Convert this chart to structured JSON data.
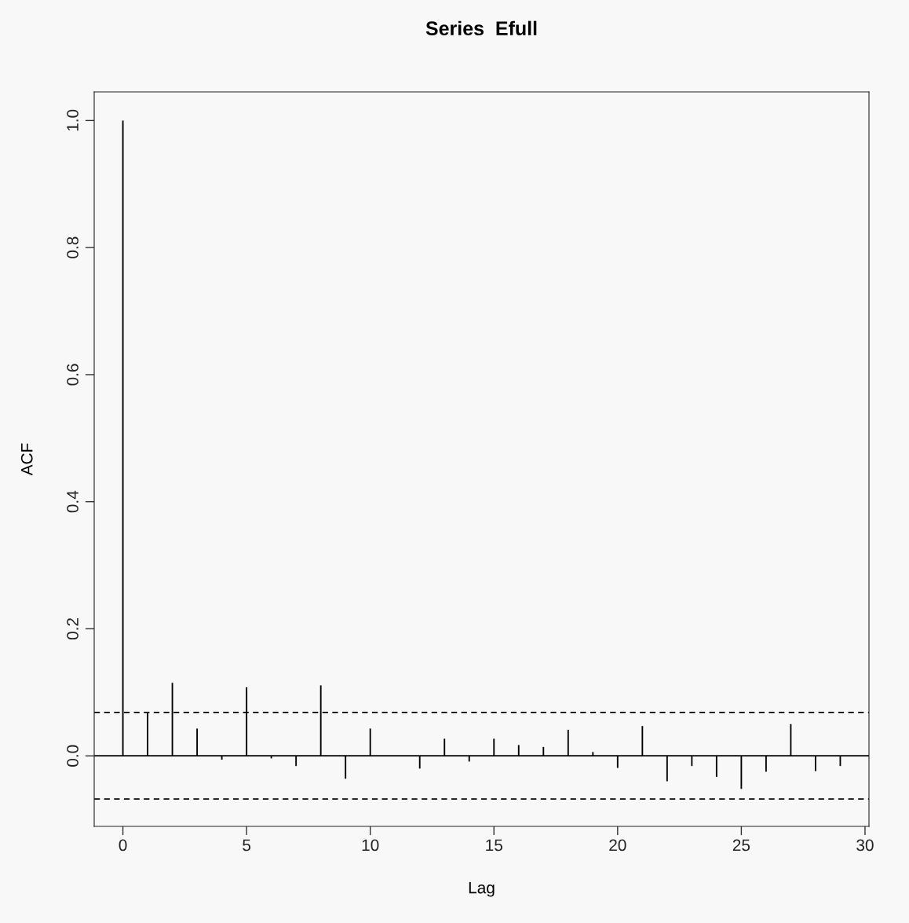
{
  "chart_data": {
    "type": "bar",
    "title": "Series  Efull",
    "xlabel": "Lag",
    "ylabel": "ACF",
    "x": [
      0,
      1,
      2,
      3,
      4,
      5,
      6,
      7,
      8,
      9,
      10,
      11,
      12,
      13,
      14,
      15,
      16,
      17,
      18,
      19,
      20,
      21,
      22,
      23,
      24,
      25,
      26,
      27,
      28,
      29
    ],
    "values": [
      1.0,
      0.067,
      0.115,
      0.043,
      -0.006,
      0.108,
      -0.004,
      -0.016,
      0.111,
      -0.036,
      0.043,
      null,
      -0.02,
      0.027,
      -0.009,
      0.027,
      0.017,
      0.014,
      0.041,
      0.006,
      -0.019,
      0.047,
      -0.04,
      -0.016,
      -0.033,
      -0.052,
      -0.025,
      0.05,
      -0.024,
      -0.016
    ],
    "color": "#000000",
    "xlim": [
      -1.16,
      30.16
    ],
    "xticks": [
      0,
      5,
      10,
      15,
      20,
      25,
      30
    ],
    "ylim": [
      -0.111,
      1.045
    ],
    "yticks": [
      {
        "value": 0,
        "label": "0.0"
      },
      {
        "value": 0.2,
        "label": "0.2"
      },
      {
        "value": 0.4,
        "label": "0.4"
      },
      {
        "value": 0.6,
        "label": "0.6"
      },
      {
        "value": 0.8,
        "label": "0.8"
      },
      {
        "value": 1.0,
        "label": "1.0"
      }
    ],
    "ref_lines": [
      {
        "axis": "y",
        "value": 0,
        "color": "#000000",
        "line_style": "solid"
      },
      {
        "axis": "y",
        "value": 0.068,
        "color": "#000000",
        "line_style": "dashed"
      },
      {
        "axis": "y",
        "value": -0.068,
        "color": "#000000",
        "line_style": "dashed"
      }
    ],
    "grid": false,
    "legend": false
  }
}
